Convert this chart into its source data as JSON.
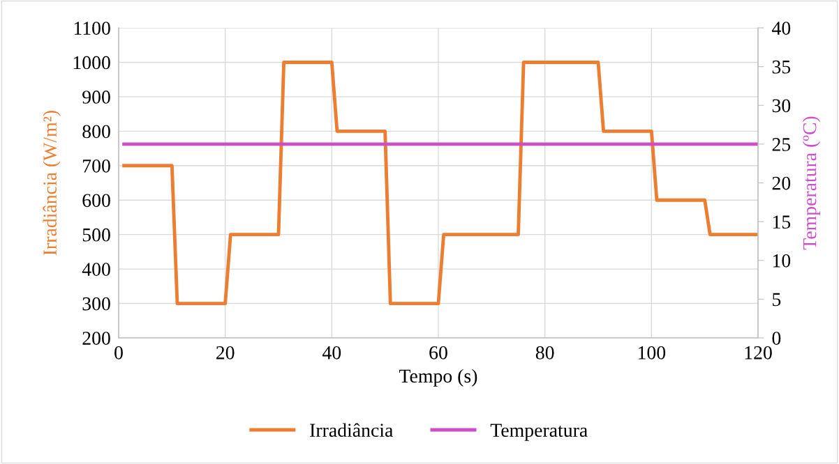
{
  "chart_data": {
    "type": "line",
    "xlabel": "Tempo (s)",
    "ylabel": "Irradiância (W/m²)",
    "y2label": "Temperatura (ºC)",
    "xlim": [
      0,
      120
    ],
    "xticks": [
      0,
      20,
      40,
      60,
      80,
      100,
      120
    ],
    "ylim": [
      200,
      1100
    ],
    "yticks": [
      200,
      300,
      400,
      500,
      600,
      700,
      800,
      900,
      1000,
      1100
    ],
    "y2lim": [
      0,
      40
    ],
    "y2ticks": [
      0,
      5,
      10,
      15,
      20,
      25,
      30,
      35,
      40
    ],
    "grid": true,
    "legend": "bottom",
    "line_style": "solid",
    "marker": "none",
    "series": [
      {
        "name": "Irradiância",
        "color": "#ed7d31",
        "x": [
          1,
          10,
          11,
          20,
          21,
          30,
          31,
          40,
          41,
          50,
          51,
          60,
          61,
          75,
          76,
          90,
          91,
          100,
          101,
          110,
          111,
          120
        ],
        "values": [
          700,
          700,
          300,
          300,
          500,
          500,
          1000,
          1000,
          800,
          800,
          300,
          300,
          500,
          500,
          1000,
          1000,
          800,
          800,
          600,
          600,
          500,
          500
        ]
      },
      {
        "name": "Temperatura",
        "color": "#cc4fc8",
        "axis": "y2",
        "x": [
          1,
          120
        ],
        "values": [
          25,
          25
        ]
      }
    ]
  }
}
